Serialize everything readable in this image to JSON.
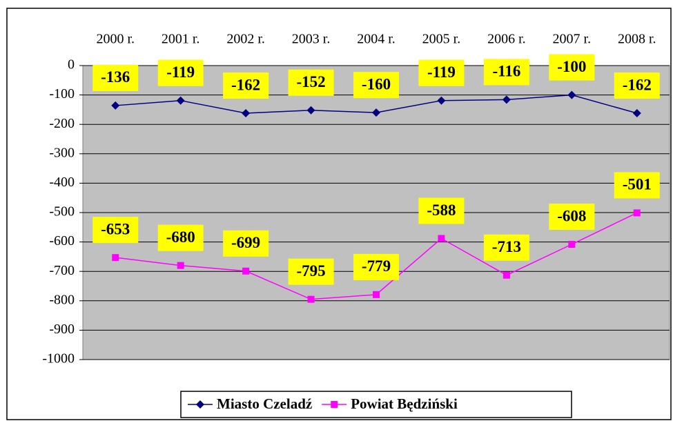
{
  "chart_data": {
    "type": "line",
    "categories": [
      "2000 r.",
      "2001 r.",
      "2002 r.",
      "2003 r.",
      "2004 r.",
      "2005 r.",
      "2006 r.",
      "2007 r.",
      "2008 r."
    ],
    "series": [
      {
        "name": "Miasto Czeladź",
        "color": "#000080",
        "marker": "diamond",
        "values": [
          -136,
          -119,
          -162,
          -152,
          -160,
          -119,
          -116,
          -100,
          -162
        ]
      },
      {
        "name": "Powiat Będziński",
        "color": "#ff00ff",
        "marker": "square",
        "values": [
          -653,
          -680,
          -699,
          -795,
          -779,
          -588,
          -713,
          -608,
          -501
        ]
      }
    ],
    "ylim": [
      -1000,
      0
    ],
    "yticks": [
      0,
      -100,
      -200,
      -300,
      -400,
      -500,
      -600,
      -700,
      -800,
      -900,
      -1000
    ],
    "grid": true,
    "legend": "bottom"
  }
}
